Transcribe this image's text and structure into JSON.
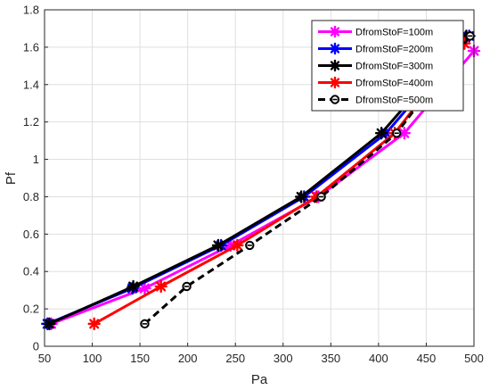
{
  "chart_data": {
    "type": "line",
    "xlabel": "Pa",
    "ylabel": "Pf",
    "xlim": [
      50,
      500
    ],
    "ylim": [
      0,
      1.8
    ],
    "xticks": [
      "50",
      "100",
      "150",
      "200",
      "250",
      "300",
      "350",
      "400",
      "450",
      "500"
    ],
    "yticks": [
      "0",
      "0.2",
      "0.4",
      "0.6",
      "0.8",
      "1",
      "1.2",
      "1.4",
      "1.6",
      "1.8"
    ],
    "grid": true,
    "legend_position": "top-right",
    "series": [
      {
        "name": "DfromStoF=100m",
        "color": "#ff00ff",
        "marker": "asterisk",
        "dash": "solid",
        "x": [
          57,
          155,
          245,
          337,
          427,
          500
        ],
        "y": [
          0.12,
          0.31,
          0.54,
          0.8,
          1.14,
          1.58
        ]
      },
      {
        "name": "DfromStoF=200m",
        "color": "#0000ff",
        "marker": "asterisk",
        "dash": "solid",
        "x": [
          53,
          142,
          235,
          322,
          408,
          495
        ],
        "y": [
          0.12,
          0.31,
          0.54,
          0.8,
          1.14,
          1.66
        ]
      },
      {
        "name": "DfromStoF=300m",
        "color": "#000000",
        "marker": "asterisk",
        "dash": "solid",
        "x": [
          55,
          143,
          232,
          319,
          403,
          492
        ],
        "y": [
          0.12,
          0.32,
          0.54,
          0.8,
          1.14,
          1.66
        ]
      },
      {
        "name": "DfromStoF=400m",
        "color": "#ff0000",
        "marker": "asterisk",
        "dash": "solid",
        "x": [
          102,
          172,
          252,
          335,
          417,
          490
        ],
        "y": [
          0.12,
          0.32,
          0.54,
          0.8,
          1.14,
          1.62
        ]
      },
      {
        "name": "DfromStoF=500m",
        "color": "#000000",
        "marker": "circle",
        "dash": "dashed",
        "x": [
          155,
          199,
          265,
          340,
          419,
          496
        ],
        "y": [
          0.12,
          0.32,
          0.54,
          0.8,
          1.14,
          1.66
        ]
      }
    ]
  }
}
